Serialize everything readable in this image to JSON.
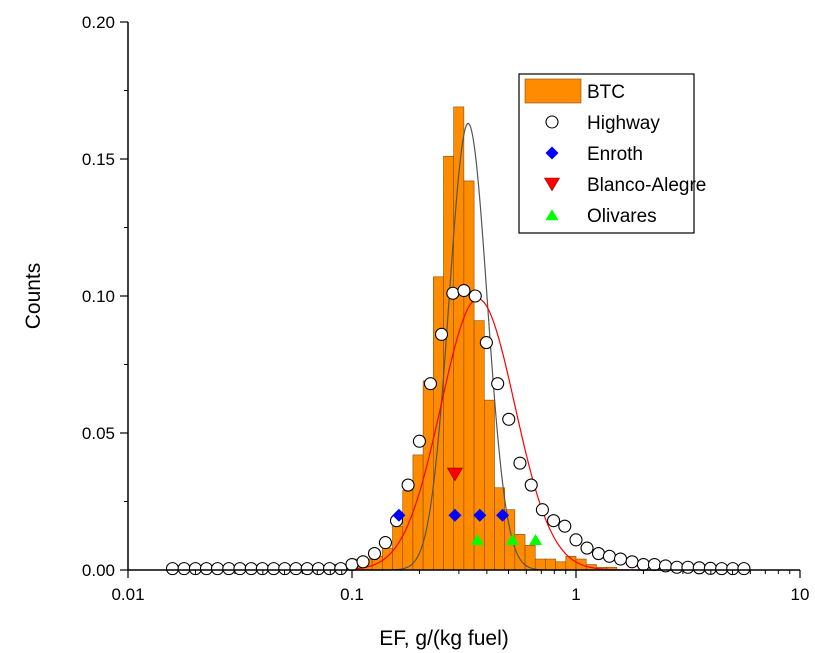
{
  "chart_data": {
    "type": "bar",
    "xscale": "log",
    "xlim": [
      0.01,
      10
    ],
    "ylim": [
      0,
      0.2
    ],
    "xlabel": "EF, g/(kg fuel)",
    "ylabel": "Counts",
    "xticks": [
      "0.01",
      "0.1",
      "1",
      "10"
    ],
    "yticks": [
      "0.00",
      "0.05",
      "0.10",
      "0.15",
      "0.20"
    ],
    "grid": false,
    "legend_position": "top-right",
    "colors": {
      "btc": "#ff8c00",
      "highway": "#ffffff",
      "enroth": "#0000ff",
      "blanco_alegre": "#ff0000",
      "olivares": "#00ff00",
      "fit_btc": "#555555",
      "fit_highway": "#ff0000"
    },
    "legend": [
      {
        "key": "btc",
        "label": "BTC",
        "marker": "bar"
      },
      {
        "key": "highway",
        "label": "Highway",
        "marker": "circle"
      },
      {
        "key": "enroth",
        "label": "Enroth",
        "marker": "diamond"
      },
      {
        "key": "blanco_alegre",
        "label": "Blanco-Alegre",
        "marker": "triangle-down"
      },
      {
        "key": "olivares",
        "label": "Olivares",
        "marker": "triangle-up"
      }
    ],
    "btc_bins": {
      "log_start": -1.092,
      "log_width": 0.0455,
      "values": [
        0.002,
        0.002,
        0.004,
        0.004,
        0.005,
        0.008,
        0.016,
        0.029,
        0.042,
        0.069,
        0.107,
        0.151,
        0.169,
        0.142,
        0.091,
        0.062,
        0.03,
        0.022,
        0.013,
        0.009,
        0.004,
        0.004,
        0.003,
        0.005,
        0.004,
        0.002,
        0.001,
        0.001
      ]
    },
    "highway": {
      "x": [
        0.0158,
        0.0178,
        0.02,
        0.0224,
        0.0251,
        0.0282,
        0.0316,
        0.0355,
        0.0398,
        0.0447,
        0.0501,
        0.0562,
        0.0631,
        0.0708,
        0.0794,
        0.0891,
        0.1,
        0.112,
        0.126,
        0.141,
        0.158,
        0.178,
        0.2,
        0.224,
        0.251,
        0.282,
        0.316,
        0.355,
        0.398,
        0.447,
        0.501,
        0.562,
        0.631,
        0.708,
        0.794,
        0.891,
        1.0,
        1.12,
        1.26,
        1.41,
        1.58,
        1.78,
        2.0,
        2.24,
        2.51,
        2.82,
        3.16,
        3.55,
        3.98,
        4.47,
        5.01,
        5.62
      ],
      "y": [
        0.0005,
        0.0005,
        0.0005,
        0.0005,
        0.0005,
        0.0005,
        0.0005,
        0.0005,
        0.0005,
        0.0005,
        0.0005,
        0.0005,
        0.0005,
        0.0005,
        0.0005,
        0.0005,
        0.002,
        0.003,
        0.006,
        0.01,
        0.018,
        0.031,
        0.047,
        0.068,
        0.086,
        0.101,
        0.102,
        0.1,
        0.083,
        0.068,
        0.055,
        0.039,
        0.031,
        0.022,
        0.018,
        0.016,
        0.011,
        0.008,
        0.006,
        0.005,
        0.004,
        0.003,
        0.002,
        0.002,
        0.0015,
        0.001,
        0.001,
        0.0008,
        0.0006,
        0.0005,
        0.0005,
        0.0005
      ]
    },
    "enroth": {
      "x": [
        0.162,
        0.288,
        0.372,
        0.47
      ],
      "y": [
        0.02,
        0.02,
        0.02,
        0.02
      ]
    },
    "blanco_alegre": {
      "x": [
        0.288
      ],
      "y": [
        0.035
      ]
    },
    "olivares": {
      "x": [
        0.363,
        0.52,
        0.66
      ],
      "y": [
        0.011,
        0.011,
        0.011
      ]
    },
    "fit_btc": {
      "type": "lognormal",
      "center": 0.33,
      "sigma_log10": 0.085,
      "peak": 0.163
    },
    "fit_highway": {
      "type": "lognormal",
      "center": 0.365,
      "sigma_log10": 0.165,
      "peak": 0.099
    }
  }
}
